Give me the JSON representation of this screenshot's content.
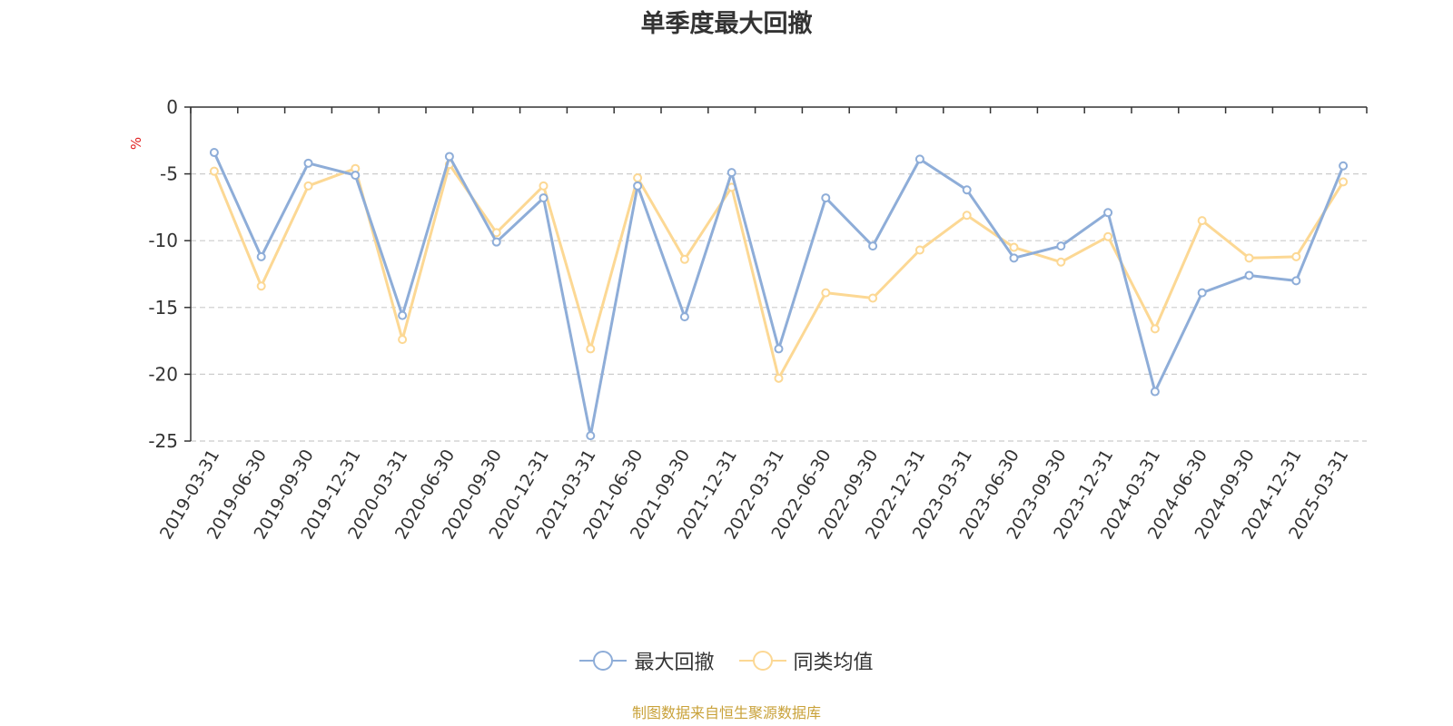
{
  "title": "单季度最大回撤",
  "source_text": "制图数据来自恒生聚源数据库",
  "colors": {
    "series_1": "#8eadd8",
    "series_2": "#fcd894",
    "unit": "#e02020",
    "source": "#c9a23a",
    "axis": "#333333",
    "grid": "#cccccc"
  },
  "chart_data": {
    "type": "line",
    "title": "单季度最大回撤",
    "ylabel": "%",
    "xlabel": "",
    "ylim": [
      -25,
      0
    ],
    "yticks": [
      0,
      -5,
      -10,
      -15,
      -20,
      -25
    ],
    "grid": true,
    "legend_position": "bottom",
    "categories": [
      "2019-03-31",
      "2019-06-30",
      "2019-09-30",
      "2019-12-31",
      "2020-03-31",
      "2020-06-30",
      "2020-09-30",
      "2020-12-31",
      "2021-03-31",
      "2021-06-30",
      "2021-09-30",
      "2021-12-31",
      "2022-03-31",
      "2022-06-30",
      "2022-09-30",
      "2022-12-31",
      "2023-03-31",
      "2023-06-30",
      "2023-09-30",
      "2023-12-31",
      "2024-03-31",
      "2024-06-30",
      "2024-09-30",
      "2024-12-31",
      "2025-03-31"
    ],
    "series": [
      {
        "name": "最大回撤",
        "values": [
          -3.4,
          -11.2,
          -4.2,
          -5.1,
          -15.6,
          -3.7,
          -10.1,
          -6.8,
          -24.6,
          -5.9,
          -15.7,
          -4.9,
          -18.1,
          -6.8,
          -10.4,
          -3.9,
          -6.2,
          -11.3,
          -10.4,
          -7.9,
          -21.3,
          -13.9,
          -12.6,
          -13.0,
          -4.4
        ]
      },
      {
        "name": "同类均值",
        "values": [
          -4.8,
          -13.4,
          -5.9,
          -4.6,
          -17.4,
          -4.3,
          -9.4,
          -5.9,
          -18.1,
          -5.3,
          -11.4,
          -6.0,
          -20.3,
          -13.9,
          -14.3,
          -10.7,
          -8.1,
          -10.5,
          -11.6,
          -9.7,
          -16.6,
          -8.5,
          -11.3,
          -11.2,
          -5.6
        ]
      }
    ]
  }
}
